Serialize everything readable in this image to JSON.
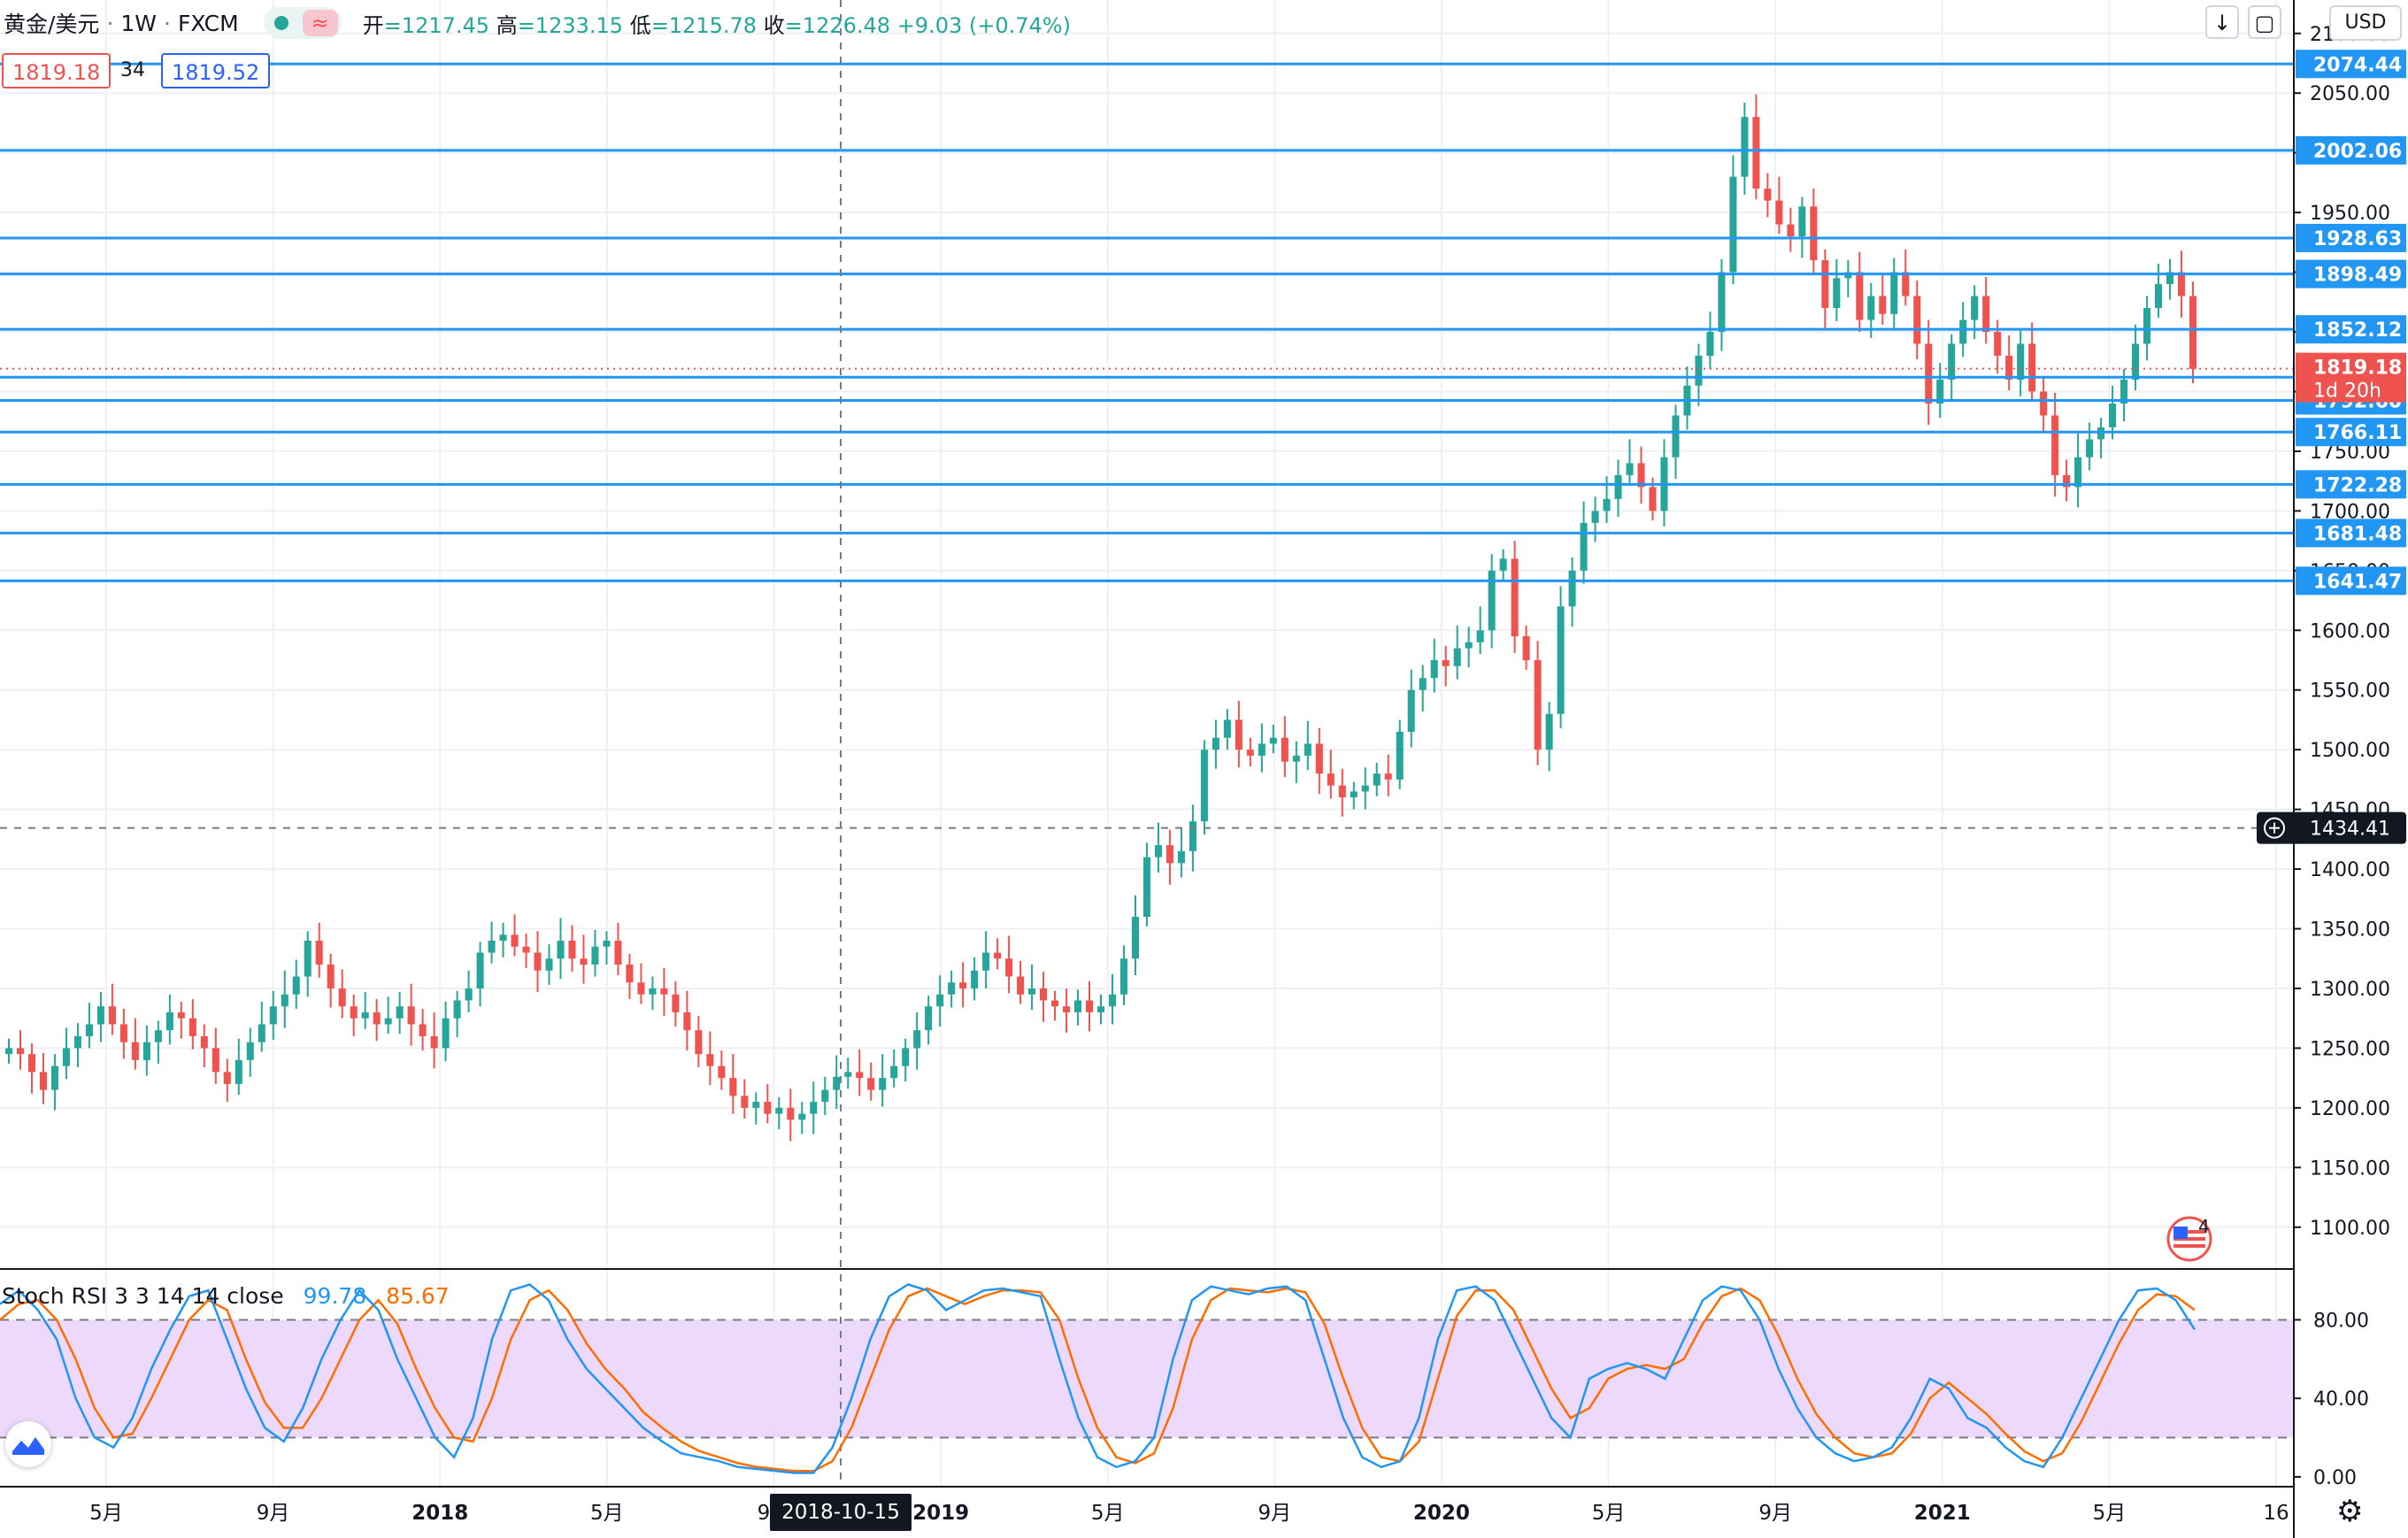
{
  "header": {
    "symbol": "黄金/美元",
    "interval": "1W",
    "exchange": "FXCM",
    "open_label": "开",
    "open": "1217.45",
    "high_label": "高",
    "high": "1233.15",
    "low_label": "低",
    "low": "1215.78",
    "close_label": "收",
    "close": "1226.48",
    "change": "+9.03 (+0.74%)",
    "bid": "1819.18",
    "spread": "34",
    "ask": "1819.52",
    "currency": "USD"
  },
  "crosshair": {
    "date_label": "2018-10-15",
    "price_label": "1434.41"
  },
  "indicator": {
    "name": "Stoch RSI 3 3 14 14 close",
    "k_value": "99.78",
    "d_value": "85.67"
  },
  "events": {
    "count": "4"
  },
  "colors": {
    "up": "#26a69a",
    "down": "#ef5350",
    "levels": "#2196f3",
    "k": "#2196f3",
    "d": "#ff6d00",
    "band": "#ead5fb"
  },
  "chart_data": [
    {
      "type": "candlestick",
      "ylim": [
        1065,
        2128
      ],
      "y_ticks": [
        1100,
        1150,
        1200,
        1250,
        1300,
        1350,
        1400,
        1450,
        1500,
        1550,
        1600,
        1650,
        1700,
        1750,
        1800,
        1850,
        1900,
        1950,
        2000,
        2050,
        2100
      ],
      "x_ticks": [
        "5月",
        "9月",
        "2018",
        "5月",
        "9月",
        "2019",
        "5月",
        "9月",
        "2020",
        "5月",
        "9月",
        "2021",
        "5月",
        "16"
      ],
      "grid": true,
      "horizontal_levels": [
        2074.44,
        2002.06,
        1928.63,
        1898.49,
        1852.12,
        1812.04,
        1792.6,
        1766.11,
        1722.28,
        1681.48,
        1641.47
      ],
      "last_price": 1819.18,
      "countdown": "1d 20h",
      "close_approx": [
        1250,
        1245,
        1230,
        1215,
        1235,
        1250,
        1260,
        1270,
        1285,
        1270,
        1255,
        1240,
        1255,
        1265,
        1280,
        1275,
        1260,
        1250,
        1230,
        1220,
        1240,
        1255,
        1270,
        1285,
        1295,
        1310,
        1340,
        1320,
        1300,
        1285,
        1275,
        1280,
        1270,
        1275,
        1285,
        1270,
        1260,
        1250,
        1275,
        1290,
        1300,
        1330,
        1340,
        1345,
        1335,
        1330,
        1315,
        1325,
        1340,
        1325,
        1320,
        1335,
        1340,
        1320,
        1305,
        1295,
        1300,
        1295,
        1280,
        1265,
        1245,
        1235,
        1225,
        1210,
        1200,
        1205,
        1195,
        1200,
        1190,
        1195,
        1205,
        1215,
        1226,
        1230,
        1225,
        1215,
        1225,
        1235,
        1250,
        1265,
        1285,
        1295,
        1305,
        1300,
        1315,
        1330,
        1325,
        1310,
        1295,
        1300,
        1290,
        1285,
        1280,
        1290,
        1280,
        1285,
        1295,
        1325,
        1360,
        1410,
        1420,
        1405,
        1415,
        1440,
        1500,
        1510,
        1525,
        1500,
        1495,
        1505,
        1510,
        1490,
        1495,
        1505,
        1480,
        1470,
        1460,
        1465,
        1470,
        1480,
        1475,
        1515,
        1550,
        1560,
        1575,
        1570,
        1585,
        1590,
        1600,
        1650,
        1660,
        1595,
        1575,
        1500,
        1530,
        1620,
        1650,
        1690,
        1700,
        1710,
        1730,
        1740,
        1720,
        1700,
        1745,
        1780,
        1805,
        1830,
        1850,
        1900,
        1980,
        2030,
        1970,
        1960,
        1940,
        1930,
        1955,
        1910,
        1870,
        1895,
        1900,
        1860,
        1880,
        1865,
        1900,
        1880,
        1840,
        1790,
        1810,
        1840,
        1860,
        1880,
        1850,
        1830,
        1810,
        1840,
        1800,
        1780,
        1730,
        1720,
        1745,
        1760,
        1770,
        1790,
        1810,
        1840,
        1870,
        1890,
        1900,
        1880,
        1819
      ]
    },
    {
      "type": "line",
      "title": "Stoch RSI 3 3 14 14 close",
      "ylim": [
        -5,
        105
      ],
      "y_ticks": [
        0,
        40,
        80
      ],
      "band": [
        20,
        80
      ],
      "series": [
        {
          "name": "K",
          "values": [
            88,
            95,
            85,
            70,
            40,
            20,
            15,
            30,
            55,
            75,
            92,
            95,
            70,
            45,
            25,
            18,
            35,
            60,
            80,
            95,
            85,
            60,
            40,
            20,
            10,
            30,
            70,
            95,
            98,
            90,
            70,
            55,
            45,
            35,
            25,
            18,
            12,
            10,
            8,
            5,
            4,
            3,
            2,
            2,
            15,
            40,
            70,
            92,
            98,
            95,
            85,
            90,
            95,
            96,
            94,
            92,
            60,
            30,
            10,
            5,
            8,
            20,
            60,
            90,
            97,
            95,
            93,
            96,
            97,
            90,
            60,
            30,
            10,
            5,
            8,
            30,
            70,
            95,
            97,
            90,
            70,
            50,
            30,
            20,
            50,
            55,
            58,
            55,
            50,
            70,
            90,
            97,
            95,
            80,
            55,
            35,
            20,
            12,
            8,
            10,
            15,
            30,
            50,
            45,
            30,
            25,
            15,
            8,
            5,
            20,
            40,
            60,
            80,
            95,
            96,
            90,
            75
          ]
        },
        {
          "name": "D",
          "values": [
            80,
            88,
            90,
            80,
            60,
            35,
            20,
            22,
            40,
            60,
            80,
            90,
            85,
            60,
            38,
            25,
            25,
            40,
            60,
            80,
            90,
            78,
            55,
            35,
            20,
            18,
            40,
            70,
            90,
            95,
            85,
            68,
            55,
            45,
            33,
            25,
            18,
            13,
            10,
            7,
            5,
            4,
            3,
            3,
            8,
            25,
            50,
            75,
            92,
            96,
            92,
            88,
            92,
            95,
            95,
            94,
            80,
            50,
            25,
            10,
            7,
            12,
            35,
            70,
            90,
            96,
            95,
            94,
            96,
            94,
            78,
            50,
            25,
            10,
            8,
            18,
            50,
            82,
            95,
            95,
            85,
            65,
            45,
            30,
            35,
            50,
            55,
            57,
            55,
            60,
            78,
            92,
            96,
            90,
            72,
            50,
            32,
            20,
            12,
            10,
            12,
            22,
            40,
            48,
            40,
            32,
            22,
            13,
            8,
            12,
            28,
            48,
            68,
            85,
            93,
            92,
            85
          ]
        }
      ]
    }
  ]
}
